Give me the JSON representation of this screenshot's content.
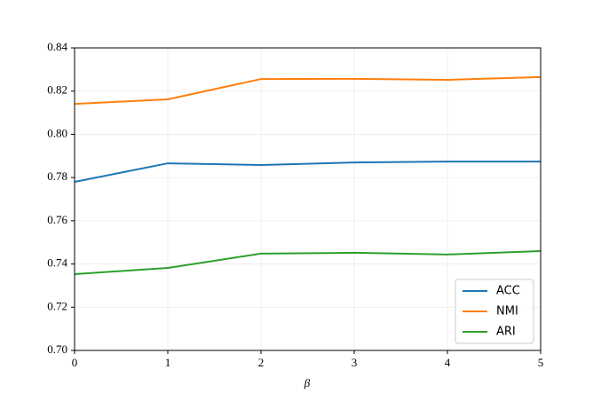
{
  "chart_data": {
    "type": "line",
    "x": [
      0,
      1,
      2,
      3,
      4,
      5
    ],
    "series": [
      {
        "name": "ACC",
        "color": "#1f77b4",
        "values": [
          0.778,
          0.7866,
          0.7858,
          0.787,
          0.7874,
          0.7874
        ]
      },
      {
        "name": "NMI",
        "color": "#ff7f0e",
        "values": [
          0.8141,
          0.8162,
          0.8256,
          0.8257,
          0.8252,
          0.8265
        ]
      },
      {
        "name": "ARI",
        "color": "#2ca02c",
        "values": [
          0.7353,
          0.7382,
          0.7448,
          0.7452,
          0.7444,
          0.746
        ]
      }
    ],
    "xlabel": "β",
    "xlim": [
      0,
      5
    ],
    "xticks": [
      0,
      1,
      2,
      3,
      4,
      5
    ],
    "ylim": [
      0.7,
      0.84
    ],
    "yticks": [
      {
        "value": 0.7,
        "label": "0.70"
      },
      0.72,
      0.74,
      0.76,
      0.78,
      {
        "value": 0.8,
        "label": "0.80"
      },
      0.82,
      0.84
    ],
    "grid": true,
    "legend": "lower right"
  }
}
